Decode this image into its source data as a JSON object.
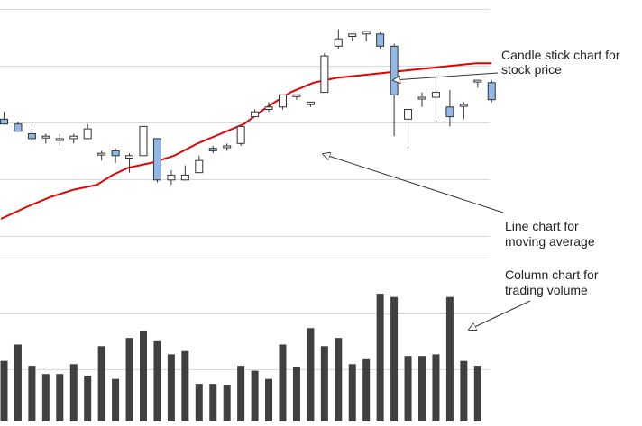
{
  "chart_data": [
    {
      "type": "candlestick",
      "title": "",
      "xlabel": "",
      "ylabel": "",
      "ylim": [
        0,
        100
      ],
      "grid": true,
      "series": [
        {
          "name": "",
          "values": [
            {
              "open": 51,
              "high": 54,
              "low": 49,
              "close": 49
            },
            {
              "open": 49,
              "high": 50,
              "low": 46,
              "close": 46
            },
            {
              "open": 45,
              "high": 47,
              "low": 42,
              "close": 43
            },
            {
              "open": 44,
              "high": 45,
              "low": 41,
              "close": 44
            },
            {
              "open": 43,
              "high": 45,
              "low": 40,
              "close": 43
            },
            {
              "open": 43,
              "high": 45,
              "low": 41,
              "close": 44
            },
            {
              "open": 43,
              "high": 49,
              "low": 47,
              "close": 47
            },
            {
              "open": 37,
              "high": 38,
              "low": 34,
              "close": 37
            },
            {
              "open": 38,
              "high": 39,
              "low": 33,
              "close": 36
            },
            {
              "open": 35,
              "high": 37,
              "low": 29,
              "close": 36
            },
            {
              "open": 36,
              "high": 48,
              "low": 36,
              "close": 48
            },
            {
              "open": 43,
              "high": 43,
              "low": 25,
              "close": 26
            },
            {
              "open": 26,
              "high": 30,
              "low": 24,
              "close": 28
            },
            {
              "open": 26,
              "high": 32,
              "low": 26,
              "close": 28
            },
            {
              "open": 29,
              "high": 36,
              "low": 29,
              "close": 34
            },
            {
              "open": 39,
              "high": 40,
              "low": 37,
              "close": 38
            },
            {
              "open": 40,
              "high": 41,
              "low": 38,
              "close": 40
            },
            {
              "open": 41,
              "high": 47,
              "low": 40,
              "close": 48
            },
            {
              "open": 52,
              "high": 55,
              "low": 52,
              "close": 54
            },
            {
              "open": 55,
              "high": 58,
              "low": 54,
              "close": 56
            },
            {
              "open": 56,
              "high": 60,
              "low": 55,
              "close": 61
            },
            {
              "open": 61,
              "high": 59,
              "low": 59,
              "close": 61
            },
            {
              "open": 57,
              "high": 58,
              "low": 56,
              "close": 58
            },
            {
              "open": 62,
              "high": 78,
              "low": 62,
              "close": 77
            },
            {
              "open": 81,
              "high": 88,
              "low": 80,
              "close": 84
            },
            {
              "open": 85,
              "high": 86,
              "low": 83,
              "close": 86
            },
            {
              "open": 86,
              "high": 87,
              "low": 83,
              "close": 87
            },
            {
              "open": 86,
              "high": 87,
              "low": 80,
              "close": 81
            },
            {
              "open": 81,
              "high": 82,
              "low": 44,
              "close": 61
            },
            {
              "open": 51,
              "high": 55,
              "low": 39,
              "close": 55
            },
            {
              "open": 60,
              "high": 62,
              "low": 56,
              "close": 60
            },
            {
              "open": 60,
              "high": 69,
              "low": 50,
              "close": 62
            },
            {
              "open": 56,
              "high": 63,
              "low": 48,
              "close": 52
            },
            {
              "open": 57,
              "high": 58,
              "low": 51,
              "close": 57
            },
            {
              "open": 67,
              "high": 67,
              "low": 64,
              "close": 67
            },
            {
              "open": 66,
              "high": 67,
              "low": 58,
              "close": 59
            }
          ]
        }
      ],
      "x_start": 0
    },
    {
      "type": "line",
      "title": "",
      "xlabel": "",
      "ylabel": "",
      "ylim": [
        0,
        100
      ],
      "grid": false,
      "series": [
        {
          "name": "",
          "color": "#e60000",
          "points": [
            [
              -0.4,
              10
            ],
            [
              3,
              15
            ],
            [
              6,
              19
            ],
            [
              9,
              22
            ],
            [
              12,
              24
            ],
            [
              14,
              28
            ],
            [
              16,
              31
            ],
            [
              19,
              33
            ],
            [
              22,
              36
            ],
            [
              25,
              41
            ],
            [
              28,
              45
            ],
            [
              31,
              49
            ],
            [
              34,
              56
            ],
            [
              37,
              62
            ],
            [
              40,
              66
            ],
            [
              43,
              68
            ],
            [
              46,
              69
            ],
            [
              49,
              70
            ],
            [
              52,
              71
            ],
            [
              55,
              72
            ],
            [
              58,
              73
            ],
            [
              61,
              74
            ],
            [
              63,
              74
            ]
          ]
        }
      ],
      "x_start": 0
    },
    {
      "type": "bar",
      "title": "",
      "xlabel": "",
      "ylabel": "",
      "ylim": [
        0,
        100
      ],
      "grid": true,
      "color": "#404040",
      "values": [
        37,
        47,
        34,
        29,
        29,
        35,
        28,
        46,
        26,
        51,
        55,
        49,
        41,
        43,
        23,
        23,
        22,
        34,
        31,
        26,
        47,
        33,
        57,
        46,
        51,
        35,
        38,
        78,
        76,
        40,
        40,
        41,
        76,
        37,
        34
      ]
    }
  ],
  "annotations": [
    {
      "lines": [
        "Candle stick chart for",
        "stock price"
      ]
    },
    {
      "lines": [
        "Line chart for",
        "moving average"
      ]
    },
    {
      "lines": [
        "Column chart for",
        "trading volume"
      ]
    }
  ],
  "colors": {
    "grid": "#d9d9d9",
    "candle_up_fill": "#ffffff",
    "candle_down_fill": "#8fb8e8",
    "candle_stroke": "#333333",
    "moving_average": "#e60000",
    "volume": "#404040",
    "arrow": "#333333"
  }
}
